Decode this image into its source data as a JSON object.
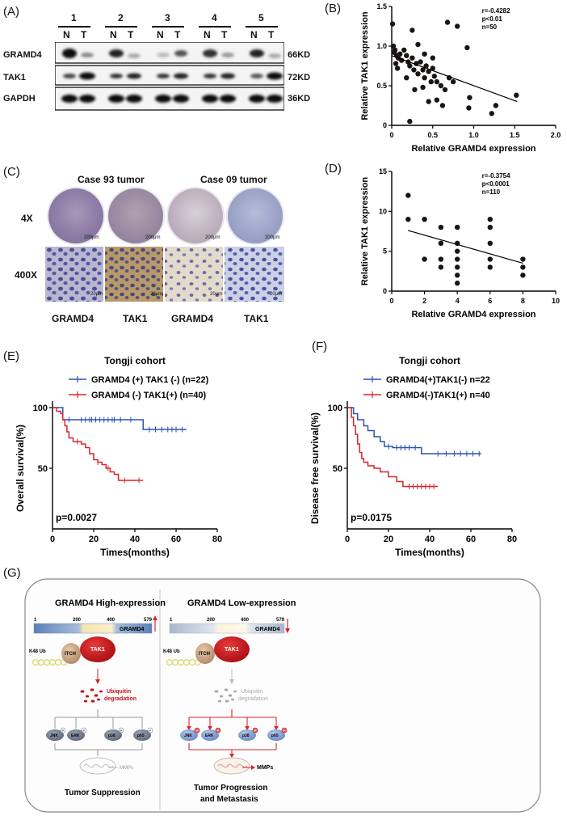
{
  "panels": {
    "a": "(A)",
    "b": "(B)",
    "c": "(C)",
    "d": "(D)",
    "e": "(E)",
    "f": "(F)",
    "g": "(G)"
  },
  "western": {
    "lanes": [
      "1",
      "2",
      "3",
      "4",
      "5"
    ],
    "nt": [
      "N",
      "T"
    ],
    "rows": [
      {
        "name": "GRAMD4",
        "size": "66KD"
      },
      {
        "name": "TAK1",
        "size": "72KD"
      },
      {
        "name": "GAPDH",
        "size": "36KD"
      }
    ]
  },
  "chart_data": [
    {
      "type": "scatter",
      "panel": "B",
      "xlabel": "Relative GRAMD4 expression",
      "ylabel": "Relative TAK1 expression",
      "xlim": [
        0,
        2.0
      ],
      "ylim": [
        0,
        1.5
      ],
      "xticks": [
        "0",
        "0.5",
        "1.0",
        "1.5",
        "2.0"
      ],
      "yticks": [
        "0",
        "0.5",
        "1.0",
        "1.5"
      ],
      "stats": [
        "r=-0.4282",
        "p<0.01",
        "n=50"
      ],
      "fit": {
        "x": [
          0,
          1.53
        ],
        "y": [
          0.88,
          0.3
        ]
      },
      "points": [
        [
          0.01,
          1.28
        ],
        [
          0.02,
          1.0
        ],
        [
          0.03,
          0.92
        ],
        [
          0.04,
          0.95
        ],
        [
          0.06,
          0.88
        ],
        [
          0.08,
          0.85
        ],
        [
          0.1,
          0.9
        ],
        [
          0.12,
          0.82
        ],
        [
          0.05,
          0.78
        ],
        [
          0.07,
          0.72
        ],
        [
          0.15,
          0.95
        ],
        [
          0.18,
          0.88
        ],
        [
          0.2,
          0.8
        ],
        [
          0.22,
          0.75
        ],
        [
          0.25,
          0.85
        ],
        [
          0.27,
          0.7
        ],
        [
          0.3,
          0.78
        ],
        [
          0.32,
          0.65
        ],
        [
          0.35,
          0.8
        ],
        [
          0.38,
          0.7
        ],
        [
          0.4,
          0.6
        ],
        [
          0.42,
          0.75
        ],
        [
          0.45,
          0.68
        ],
        [
          0.48,
          0.55
        ],
        [
          0.5,
          0.72
        ],
        [
          0.52,
          0.62
        ],
        [
          0.55,
          0.55
        ],
        [
          0.6,
          0.5
        ],
        [
          0.65,
          0.45
        ],
        [
          0.7,
          0.6
        ],
        [
          0.75,
          0.55
        ],
        [
          0.25,
          1.2
        ],
        [
          0.32,
          1.02
        ],
        [
          0.4,
          0.9
        ],
        [
          0.5,
          0.85
        ],
        [
          0.18,
          0.6
        ],
        [
          0.28,
          0.45
        ],
        [
          0.38,
          0.48
        ],
        [
          0.45,
          0.3
        ],
        [
          0.55,
          0.32
        ],
        [
          0.62,
          0.25
        ],
        [
          0.68,
          1.3
        ],
        [
          0.8,
          1.25
        ],
        [
          0.92,
          0.98
        ],
        [
          0.95,
          0.35
        ],
        [
          0.94,
          0.22
        ],
        [
          1.22,
          0.15
        ],
        [
          1.27,
          0.25
        ],
        [
          1.52,
          0.38
        ],
        [
          0.22,
          0.05
        ]
      ]
    },
    {
      "type": "scatter",
      "panel": "D",
      "xlabel": "Relative GRAMD4 expression",
      "ylabel": "Relative TAK1 expression",
      "xlim": [
        0,
        10
      ],
      "ylim": [
        0,
        15
      ],
      "xticks": [
        "0",
        "2",
        "4",
        "6",
        "8",
        "10"
      ],
      "yticks": [
        "0",
        "5",
        "10",
        "15"
      ],
      "stats": [
        "r=-0.3754",
        "p<0.0001",
        "n=110"
      ],
      "fit": {
        "x": [
          1,
          8
        ],
        "y": [
          7.6,
          3.5
        ]
      },
      "points": [
        [
          1,
          12
        ],
        [
          1,
          9
        ],
        [
          2,
          9
        ],
        [
          2,
          4
        ],
        [
          3,
          8
        ],
        [
          3,
          6
        ],
        [
          3,
          4
        ],
        [
          3,
          3
        ],
        [
          4,
          8
        ],
        [
          4,
          6
        ],
        [
          4,
          5
        ],
        [
          4,
          4
        ],
        [
          4,
          3
        ],
        [
          4,
          2
        ],
        [
          4,
          1
        ],
        [
          6,
          9
        ],
        [
          6,
          8
        ],
        [
          6,
          6
        ],
        [
          6,
          4
        ],
        [
          6,
          3
        ],
        [
          8,
          4
        ],
        [
          8,
          3
        ],
        [
          8,
          2
        ]
      ]
    },
    {
      "type": "line",
      "panel": "E",
      "title": "Tongji cohort",
      "xlabel": "Times(months)",
      "ylabel": "Overall survival(%)",
      "xlim": [
        0,
        80
      ],
      "ylim": [
        0,
        100
      ],
      "xticks": [
        "0",
        "20",
        "40",
        "60",
        "80"
      ],
      "yticks": [
        "50",
        "100"
      ],
      "pvalue": "p=0.0027",
      "series": [
        {
          "name": "GRAMD4 (+) TAK1 (-) (n=22)",
          "color": "#2a52b5",
          "x": [
            0,
            5,
            5,
            44,
            44,
            65
          ],
          "y": [
            100,
            100,
            90,
            90,
            82,
            82
          ],
          "censor_x": [
            8,
            14,
            16,
            18,
            19,
            21,
            23,
            25,
            27,
            29,
            30,
            33,
            38,
            47,
            50,
            53,
            56,
            58,
            60,
            63
          ],
          "censor_y": [
            90,
            90,
            90,
            90,
            90,
            90,
            90,
            90,
            90,
            90,
            90,
            90,
            90,
            82,
            82,
            82,
            82,
            82,
            82,
            82
          ]
        },
        {
          "name": "GRAMD4 (-) TAK1(+) (n=40)",
          "color": "#d8262c",
          "x": [
            0,
            2,
            2,
            4,
            4,
            5,
            5,
            6,
            6,
            7,
            7,
            8,
            8,
            10,
            10,
            14,
            14,
            16,
            16,
            18,
            18,
            20,
            20,
            22,
            22,
            24,
            24,
            26,
            26,
            28,
            28,
            30,
            30,
            32,
            32,
            44
          ],
          "y": [
            100,
            100,
            97,
            97,
            95,
            95,
            90,
            90,
            85,
            85,
            80,
            80,
            75,
            75,
            72,
            72,
            70,
            70,
            67,
            67,
            62,
            62,
            57,
            57,
            55,
            55,
            53,
            53,
            50,
            50,
            47,
            47,
            45,
            45,
            40,
            40
          ],
          "censor_x": [
            12,
            22,
            27,
            35,
            42
          ],
          "censor_y": [
            72,
            55,
            50,
            40,
            40
          ]
        }
      ]
    },
    {
      "type": "line",
      "panel": "F",
      "title": "Tongji cohort",
      "xlabel": "Times(months)",
      "ylabel": "Disease free survival(%)",
      "xlim": [
        0,
        80
      ],
      "ylim": [
        0,
        100
      ],
      "xticks": [
        "0",
        "20",
        "40",
        "60",
        "80"
      ],
      "yticks": [
        "50",
        "100"
      ],
      "pvalue": "p=0.0175",
      "series": [
        {
          "name": "GRAMD4(+)TAK1(-) n=22",
          "color": "#2a52b5",
          "x": [
            0,
            3,
            3,
            5,
            5,
            8,
            8,
            10,
            10,
            13,
            13,
            16,
            16,
            18,
            18,
            22,
            22,
            36,
            36,
            65
          ],
          "y": [
            100,
            100,
            95,
            95,
            90,
            90,
            85,
            85,
            81,
            81,
            76,
            76,
            72,
            72,
            68,
            68,
            67,
            67,
            62,
            62
          ],
          "censor_x": [
            20,
            24,
            26,
            28,
            30,
            33,
            44,
            48,
            52,
            55,
            58,
            61,
            64
          ],
          "censor_y": [
            68,
            67,
            67,
            67,
            67,
            67,
            62,
            62,
            62,
            62,
            62,
            62,
            62
          ]
        },
        {
          "name": "GRAMD4(-)TAK1(+) n=40",
          "color": "#d8262c",
          "x": [
            0,
            2,
            2,
            3,
            3,
            4,
            4,
            5,
            5,
            6,
            6,
            7,
            7,
            8,
            8,
            10,
            10,
            13,
            13,
            16,
            16,
            20,
            20,
            24,
            24,
            27,
            27,
            44
          ],
          "y": [
            100,
            100,
            92,
            92,
            85,
            85,
            78,
            78,
            70,
            70,
            63,
            63,
            58,
            58,
            55,
            55,
            52,
            52,
            50,
            50,
            47,
            47,
            43,
            43,
            39,
            39,
            35,
            35
          ],
          "censor_x": [
            30,
            32,
            34,
            36,
            38,
            40,
            42
          ],
          "censor_y": [
            35,
            35,
            35,
            35,
            35,
            35,
            35
          ]
        }
      ]
    }
  ],
  "ihc": {
    "cases": [
      "Case 93 tumor",
      "Case 09 tumor"
    ],
    "rows": [
      "4X",
      "400X"
    ],
    "scale4x": "200μm",
    "scale400x": "20μm",
    "stains": [
      "GRAMD4",
      "TAK1",
      "GRAMD4",
      "TAK1"
    ]
  },
  "model": {
    "left": {
      "title": "GRAMD4 High-expression",
      "domain_start": "1",
      "domain_mid1": "200",
      "domain_mid2": "400",
      "domain_end": "579",
      "protein": "GRAMD4",
      "k48": "K48 Ub",
      "itch": "ITCH",
      "tak1": "TAK1",
      "ubi1": "Ubiquitin",
      "ubi2": "degradation",
      "kinases": [
        "JNK",
        "ERK",
        "p38",
        "p65"
      ],
      "p": "P",
      "mmps": "MMPs",
      "outcome": "Tumor Suppression"
    },
    "right": {
      "title": "GRAMD4 Low-expression",
      "domain_start": "1",
      "domain_mid1": "200",
      "domain_mid2": "400",
      "domain_end": "579",
      "protein": "GRAMD4",
      "k48": "K48 Ub",
      "itch": "ITCH",
      "tak1": "TAK1",
      "ubi1": "Ubiquitin",
      "ubi2": "degradation",
      "kinases": [
        "JNK",
        "ERK",
        "p38",
        "p65"
      ],
      "p": "P",
      "mmps": "MMPs",
      "outcome1": "Tumor Progression",
      "outcome2": "and Metastasis"
    }
  },
  "colors": {
    "blue": "#2a52b5",
    "red": "#d8262c",
    "dark_red": "#b01218"
  }
}
